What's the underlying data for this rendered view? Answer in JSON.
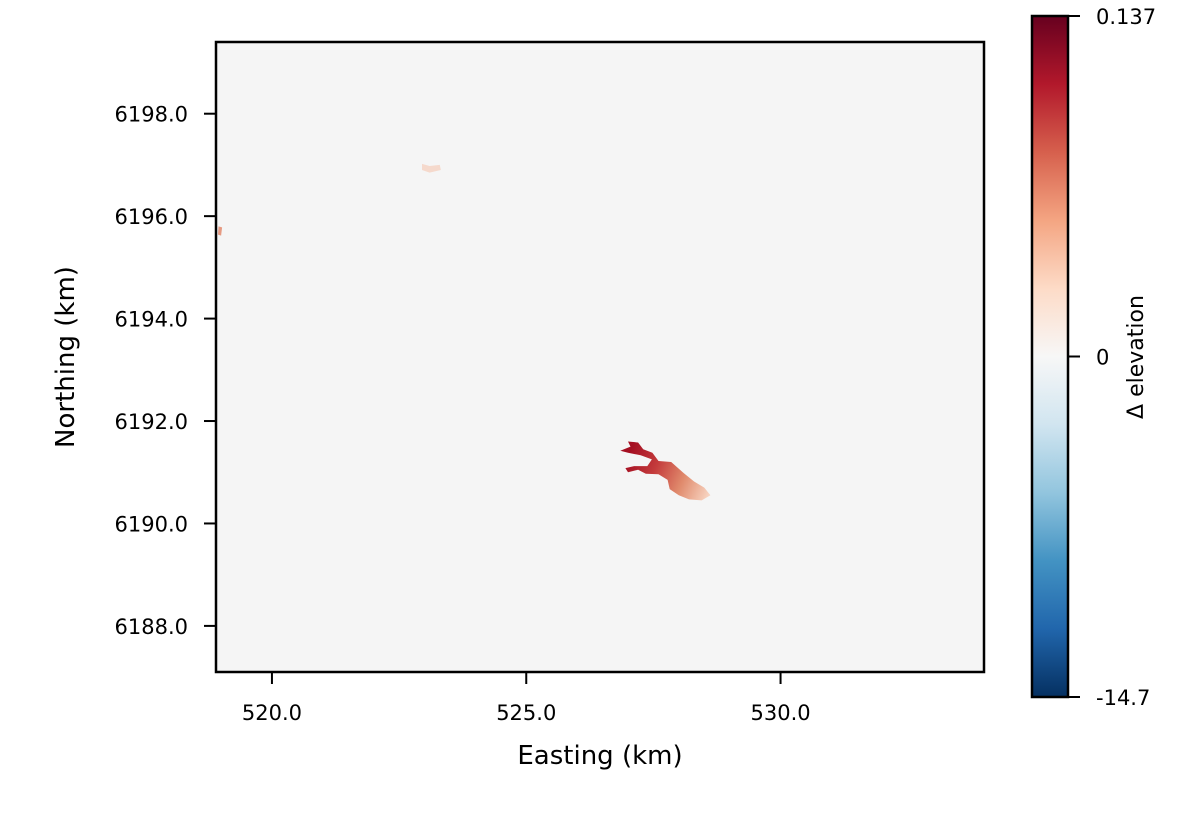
{
  "chart_data": {
    "type": "heatmap",
    "title": "",
    "xlabel": "Easting (km)",
    "ylabel": "Northing (km)",
    "xlim": [
      518.9,
      534
    ],
    "ylim": [
      6187.1,
      6199.4
    ],
    "xticks": [
      {
        "value": 520,
        "label": "520.0"
      },
      {
        "value": 525,
        "label": "525.0"
      },
      {
        "value": 530,
        "label": "530.0"
      }
    ],
    "yticks": [
      {
        "value": 6188,
        "label": "6188.0"
      },
      {
        "value": 6190,
        "label": "6190.0"
      },
      {
        "value": 6192,
        "label": "6192.0"
      },
      {
        "value": 6194,
        "label": "6194.0"
      },
      {
        "value": 6196,
        "label": "6196.0"
      },
      {
        "value": 6198,
        "label": "6198.0"
      }
    ],
    "background_value": 0,
    "background_color": "#f5f5f5",
    "colorbar": {
      "label": "Δ elevation",
      "colormap": "RdBu_r",
      "vmin": -14.7,
      "vcenter": 0,
      "vmax": 0.137,
      "ticks": [
        {
          "value": 0.137,
          "label": "0.137"
        },
        {
          "value": 0,
          "label": "0"
        },
        {
          "value": -14.7,
          "label": "-14.7"
        }
      ],
      "stops": [
        "#053061",
        "#2166ac",
        "#4393c3",
        "#92c5de",
        "#d1e5f0",
        "#f7f7f7",
        "#fddbc7",
        "#f4a582",
        "#d6604d",
        "#b2182b",
        "#67001f"
      ]
    },
    "features": [
      {
        "name": "main-change-region",
        "gradient": {
          "from": [
            527.0,
            6191.3
          ],
          "to": [
            528.6,
            6190.6
          ],
          "colors": [
            "#a50f22",
            "#c43c3c",
            "#e08a6c",
            "#f7d3c0"
          ]
        },
        "outline": [
          [
            527.0,
            6191.6
          ],
          [
            527.2,
            6191.58
          ],
          [
            527.3,
            6191.45
          ],
          [
            527.48,
            6191.38
          ],
          [
            527.6,
            6191.22
          ],
          [
            527.85,
            6191.2
          ],
          [
            528.1,
            6190.98
          ],
          [
            528.3,
            6190.82
          ],
          [
            528.5,
            6190.7
          ],
          [
            528.62,
            6190.55
          ],
          [
            528.45,
            6190.45
          ],
          [
            528.2,
            6190.47
          ],
          [
            528.0,
            6190.55
          ],
          [
            527.82,
            6190.67
          ],
          [
            527.78,
            6190.85
          ],
          [
            527.6,
            6190.96
          ],
          [
            527.35,
            6190.97
          ],
          [
            527.2,
            6191.05
          ],
          [
            527.0,
            6191.0
          ],
          [
            526.95,
            6191.08
          ],
          [
            527.12,
            6191.12
          ],
          [
            527.38,
            6191.12
          ],
          [
            527.47,
            6191.25
          ],
          [
            527.25,
            6191.33
          ],
          [
            527.0,
            6191.38
          ],
          [
            526.85,
            6191.42
          ],
          [
            527.05,
            6191.5
          ]
        ]
      },
      {
        "name": "small-change-north",
        "color": "#f5d9cc",
        "outline": [
          [
            522.95,
            6197.02
          ],
          [
            523.1,
            6196.98
          ],
          [
            523.3,
            6197.0
          ],
          [
            523.32,
            6196.9
          ],
          [
            523.1,
            6196.85
          ],
          [
            522.95,
            6196.9
          ]
        ]
      },
      {
        "name": "small-change-west-edge",
        "color": "#e69a82",
        "outline": [
          [
            518.95,
            6195.8
          ],
          [
            519.02,
            6195.78
          ],
          [
            519.0,
            6195.62
          ],
          [
            518.94,
            6195.64
          ]
        ]
      }
    ]
  }
}
